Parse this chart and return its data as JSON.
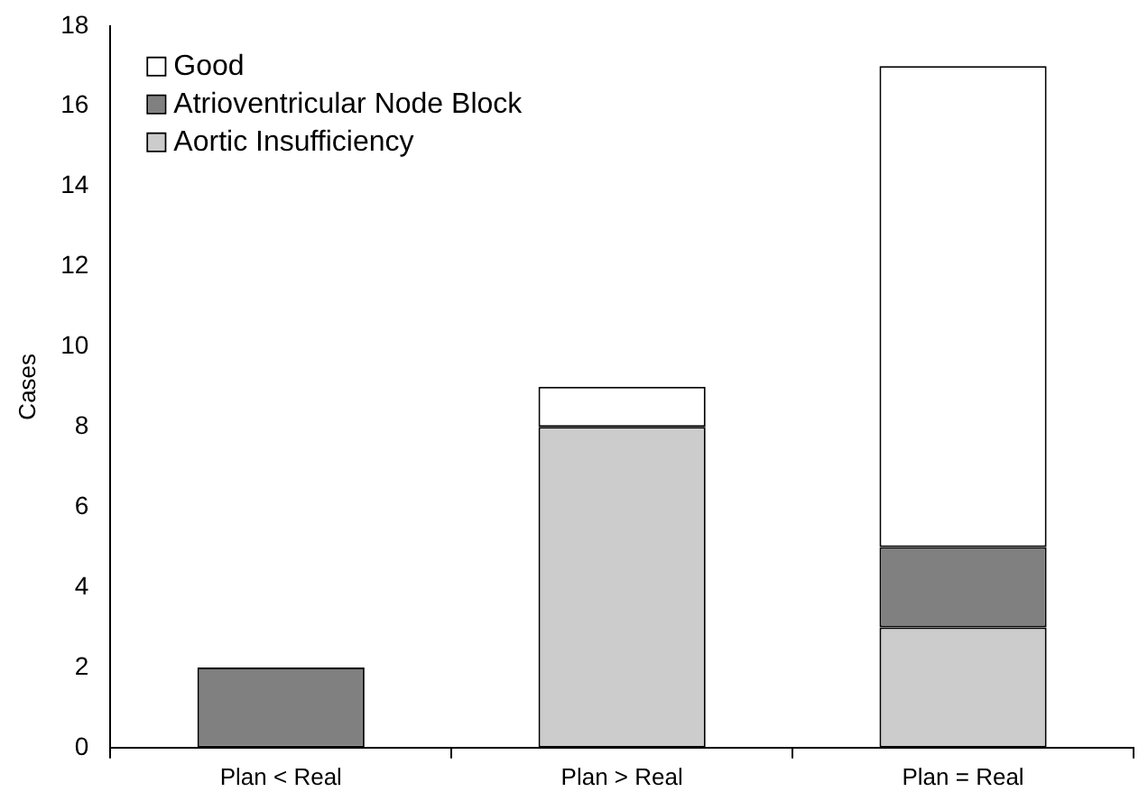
{
  "chart_data": {
    "type": "bar",
    "stacked": true,
    "ylabel": "Cases",
    "categories": [
      "Plan < Real",
      "Plan > Real",
      "Plan = Real"
    ],
    "series": [
      {
        "name": "Aortic Insufficiency",
        "color": "#cccccc",
        "values": [
          0,
          8,
          3
        ]
      },
      {
        "name": "Atrioventricular Node Block",
        "color": "#808080",
        "values": [
          2,
          0,
          2
        ]
      },
      {
        "name": "Good",
        "color": "#ffffff",
        "values": [
          0,
          1,
          12
        ]
      }
    ],
    "ylim": [
      0,
      18
    ],
    "yticks": [
      0,
      2,
      4,
      6,
      8,
      10,
      12,
      14,
      16,
      18
    ],
    "grid": false,
    "legend": "top left"
  }
}
